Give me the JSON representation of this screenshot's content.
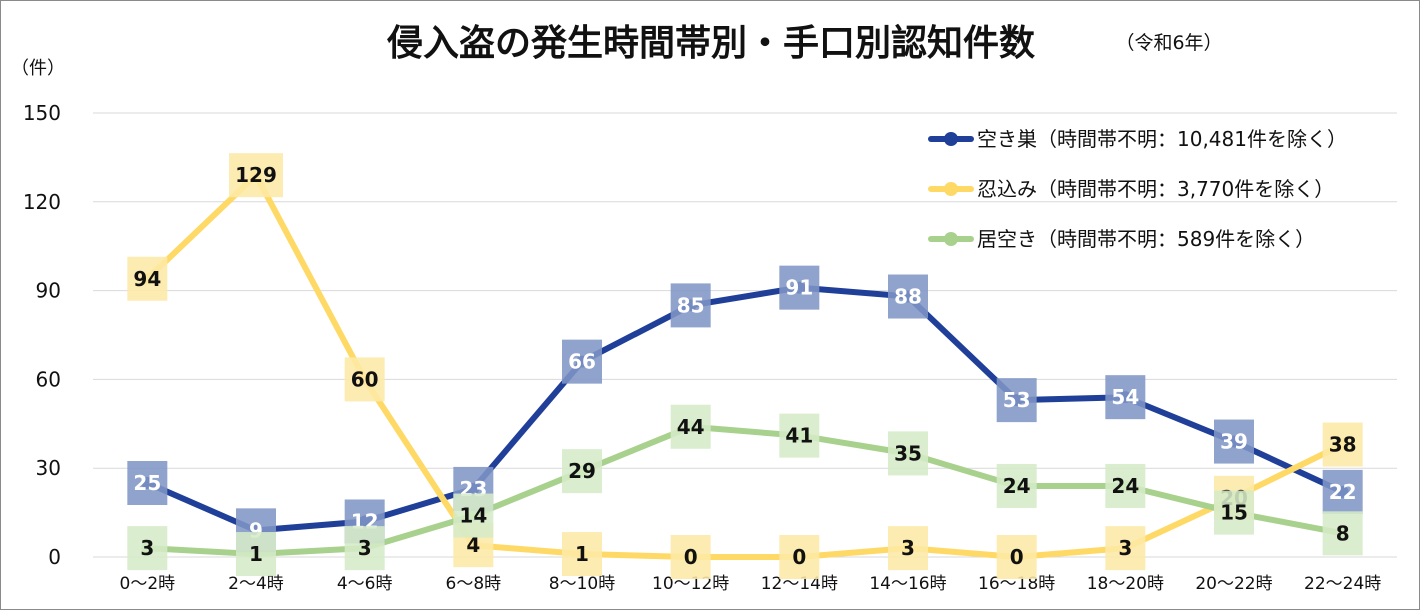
{
  "chart_data": {
    "type": "line",
    "title": "侵入盗の発生時間帯別・手口別認知件数",
    "subtitle": "（令和6年）",
    "ylabel": "（件）",
    "ylim": [
      0,
      150
    ],
    "yticks": [
      0,
      30,
      60,
      90,
      120,
      150
    ],
    "grid": true,
    "legend_position": "top-right",
    "categories": [
      "0～2時",
      "2～4時",
      "4～6時",
      "6～8時",
      "8～10時",
      "10～12時",
      "12～14時",
      "14～16時",
      "16～18時",
      "18～20時",
      "20～22時",
      "22～24時"
    ],
    "series": [
      {
        "name": "空き巣（時間帯不明：10,481件を除く）",
        "color": "#1f3f98",
        "label_bg": "#8196c6",
        "label_color": "#ffffff",
        "values": [
          25,
          9,
          12,
          23,
          66,
          85,
          91,
          88,
          53,
          54,
          39,
          22
        ]
      },
      {
        "name": "忍込み（時間帯不明：3,770件を除く）",
        "color": "#ffd966",
        "label_bg": "#fde9a6",
        "label_color": "#111111",
        "values": [
          94,
          129,
          60,
          4,
          1,
          0,
          0,
          3,
          0,
          3,
          20,
          38
        ]
      },
      {
        "name": "居空き（時間帯不明：589件を除く）",
        "color": "#a9d18e",
        "label_bg": "#d5eac7",
        "label_color": "#111111",
        "values": [
          3,
          1,
          3,
          14,
          29,
          44,
          41,
          35,
          24,
          24,
          15,
          8
        ]
      }
    ]
  }
}
